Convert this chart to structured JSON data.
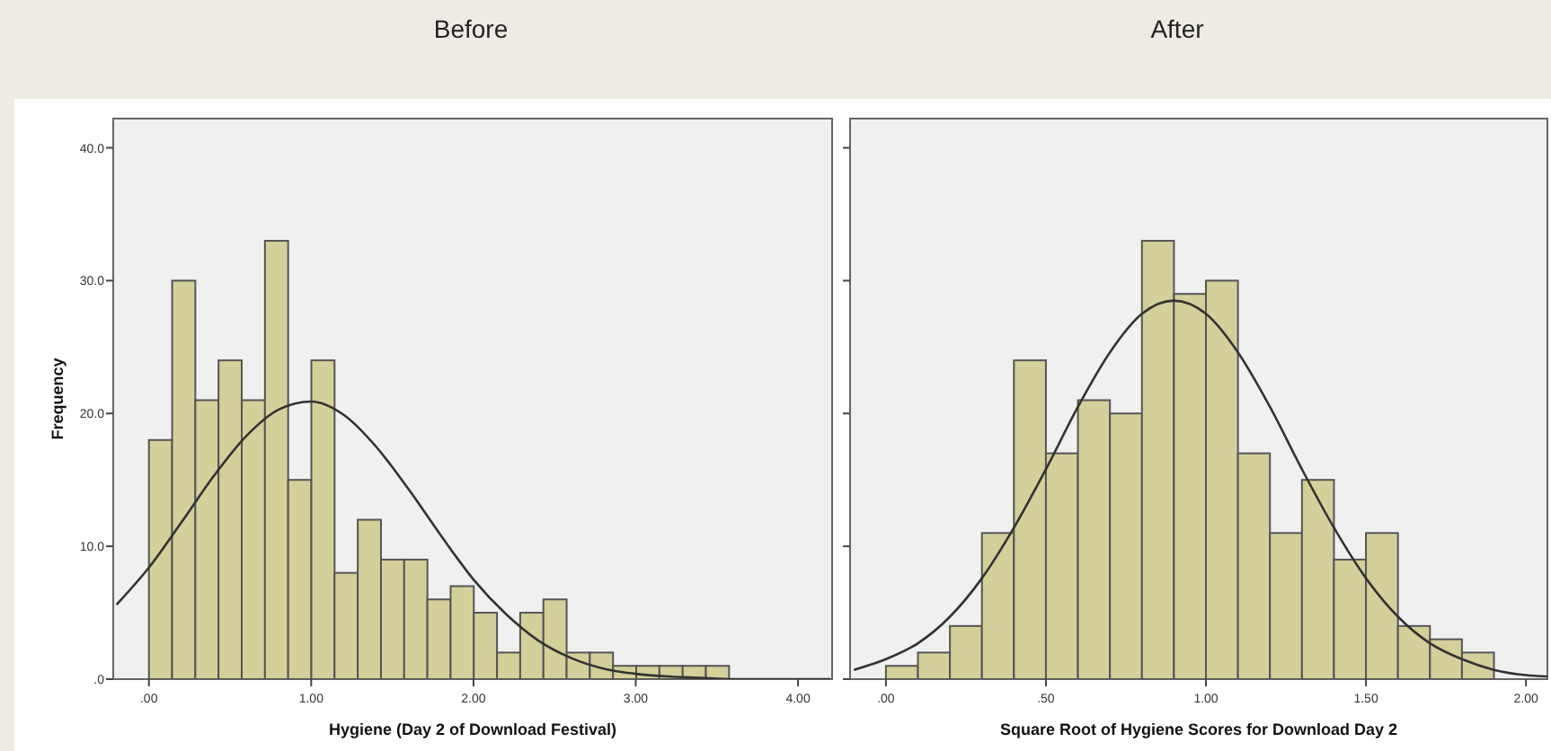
{
  "chart_data": [
    {
      "type": "histogram",
      "title": "Before",
      "ylabel": "Frequency",
      "xlabel": "Hygiene (Day 2 of Download Festival)",
      "xlim": [
        -0.22,
        4.21
      ],
      "ylim": [
        0,
        42.2
      ],
      "xticks": [
        {
          "value": 0,
          "label": ".00"
        },
        {
          "value": 1,
          "label": "1.00"
        },
        {
          "value": 2,
          "label": "2.00"
        },
        {
          "value": 3,
          "label": "3.00"
        },
        {
          "value": 4,
          "label": "4.00"
        }
      ],
      "yticks": [
        {
          "value": 0,
          "label": ".0"
        },
        {
          "value": 10,
          "label": "10.0"
        },
        {
          "value": 20,
          "label": "20.0"
        },
        {
          "value": 30,
          "label": "30.0"
        },
        {
          "value": 40,
          "label": "40.0"
        }
      ],
      "series": [
        {
          "color": "#d4d09a",
          "bins": [
            0,
            0.143,
            0.286,
            0.429,
            0.572,
            0.715,
            0.858,
            1.001,
            1.144,
            1.287,
            1.43,
            1.573,
            1.716,
            1.859,
            2.002,
            2.145,
            2.288,
            2.431,
            2.574,
            2.717,
            2.86,
            3.003,
            3.146,
            3.289,
            3.432,
            3.575
          ],
          "values": [
            18,
            30,
            21,
            24,
            21,
            33,
            15,
            24,
            8,
            12,
            9,
            9,
            6,
            7,
            5,
            2,
            5,
            6,
            2,
            2,
            1,
            1,
            1,
            1,
            1
          ]
        },
        {
          "type": "line",
          "color": "#333333",
          "x": [
            -0.2,
            0,
            0.2,
            0.4,
            0.6,
            0.8,
            1.0,
            1.2,
            1.4,
            1.6,
            1.8,
            2.0,
            2.2,
            2.4,
            2.6,
            2.8,
            3.0,
            3.2,
            3.4,
            3.6,
            4.0,
            4.2
          ],
          "values": [
            5.6,
            8.4,
            11.8,
            15.3,
            18.3,
            20.3,
            20.9,
            19.9,
            17.5,
            14.3,
            10.8,
            7.5,
            4.9,
            2.9,
            1.6,
            0.8,
            0.4,
            0.2,
            0.1,
            0,
            0,
            0
          ]
        }
      ]
    },
    {
      "type": "histogram",
      "title": "After",
      "xlabel": "Square Root of Hygiene Scores for Download Day 2",
      "tick_labels": "x",
      "xlim": [
        -0.112,
        2.067
      ],
      "ylim": [
        0,
        42.2
      ],
      "xticks": [
        {
          "value": 0,
          "label": ".00"
        },
        {
          "value": 0.5,
          "label": ".50"
        },
        {
          "value": 1,
          "label": "1.00"
        },
        {
          "value": 1.5,
          "label": "1.50"
        },
        {
          "value": 2,
          "label": "2.00"
        }
      ],
      "yticks": [
        {
          "value": 0,
          "label": null
        },
        {
          "value": 10,
          "label": null
        },
        {
          "value": 20,
          "label": null
        },
        {
          "value": 30,
          "label": null
        },
        {
          "value": 40,
          "label": null
        }
      ],
      "series": [
        {
          "color": "#d4d09a",
          "bins": [
            0,
            0.1,
            0.2,
            0.3,
            0.4,
            0.5,
            0.6,
            0.7,
            0.8,
            0.9,
            1.0,
            1.1,
            1.2,
            1.3,
            1.4,
            1.5,
            1.6,
            1.7,
            1.8,
            1.9
          ],
          "values": [
            1,
            2,
            4,
            11,
            24,
            17,
            21,
            20,
            33,
            29,
            30,
            17,
            11,
            15,
            9,
            11,
            4,
            3,
            2
          ]
        },
        {
          "type": "line",
          "color": "#333333",
          "x": [
            -0.1,
            0,
            0.1,
            0.2,
            0.3,
            0.4,
            0.5,
            0.6,
            0.7,
            0.8,
            0.9,
            1.0,
            1.1,
            1.2,
            1.3,
            1.4,
            1.5,
            1.6,
            1.7,
            1.8,
            1.9,
            2.0,
            2.067
          ],
          "values": [
            0.7,
            1.5,
            2.7,
            4.7,
            7.6,
            11.4,
            15.8,
            20.5,
            24.6,
            27.5,
            28.5,
            27.5,
            24.6,
            20.5,
            15.8,
            11.4,
            7.6,
            4.7,
            2.7,
            1.5,
            0.7,
            0.3,
            0.2
          ]
        }
      ]
    }
  ]
}
